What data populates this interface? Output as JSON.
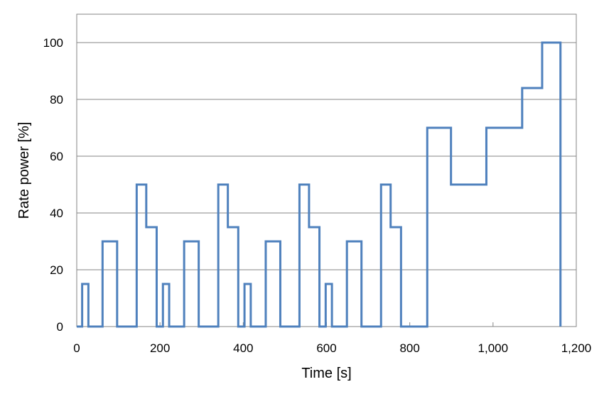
{
  "chart_data": {
    "type": "line",
    "title": "",
    "xlabel": "Time [s]",
    "ylabel": "Rate power [%]",
    "xlim": [
      0,
      1200
    ],
    "ylim": [
      0,
      110
    ],
    "xticks": [
      0,
      200,
      400,
      600,
      800,
      1000,
      1200
    ],
    "xtick_labels": [
      "0",
      "200",
      "400",
      "600",
      "800",
      "1,000",
      "1,200"
    ],
    "yticks": [
      0,
      20,
      40,
      60,
      80,
      100
    ],
    "ytick_labels": [
      "0",
      "20",
      "40",
      "60",
      "80",
      "100"
    ],
    "grid": "horizontal",
    "legend": "none",
    "line_color": "#4f81bd",
    "series": [
      {
        "x": [
          0,
          13,
          13,
          28,
          28,
          62,
          62,
          97,
          97,
          144,
          144,
          167,
          167,
          192,
          192,
          207,
          207,
          222,
          222,
          258,
          258,
          293,
          293,
          340,
          340,
          363,
          363,
          388,
          388,
          403,
          403,
          418,
          418,
          454,
          454,
          489,
          489,
          535,
          535,
          558,
          558,
          583,
          583,
          598,
          598,
          613,
          613,
          649,
          649,
          684,
          684,
          731,
          731,
          754,
          754,
          779,
          779,
          842,
          842,
          899,
          899,
          984,
          984,
          1070,
          1070,
          1118,
          1118,
          1162,
          1162
        ],
        "y": [
          0,
          0,
          15,
          15,
          0,
          0,
          30,
          30,
          0,
          0,
          50,
          50,
          35,
          35,
          0,
          0,
          15,
          15,
          0,
          0,
          30,
          30,
          0,
          0,
          50,
          50,
          35,
          35,
          0,
          0,
          15,
          15,
          0,
          0,
          30,
          30,
          0,
          0,
          50,
          50,
          35,
          35,
          0,
          0,
          15,
          15,
          0,
          0,
          30,
          30,
          0,
          0,
          50,
          50,
          35,
          35,
          0,
          0,
          70,
          70,
          50,
          50,
          70,
          70,
          84,
          84,
          100,
          100,
          0
        ]
      }
    ]
  }
}
